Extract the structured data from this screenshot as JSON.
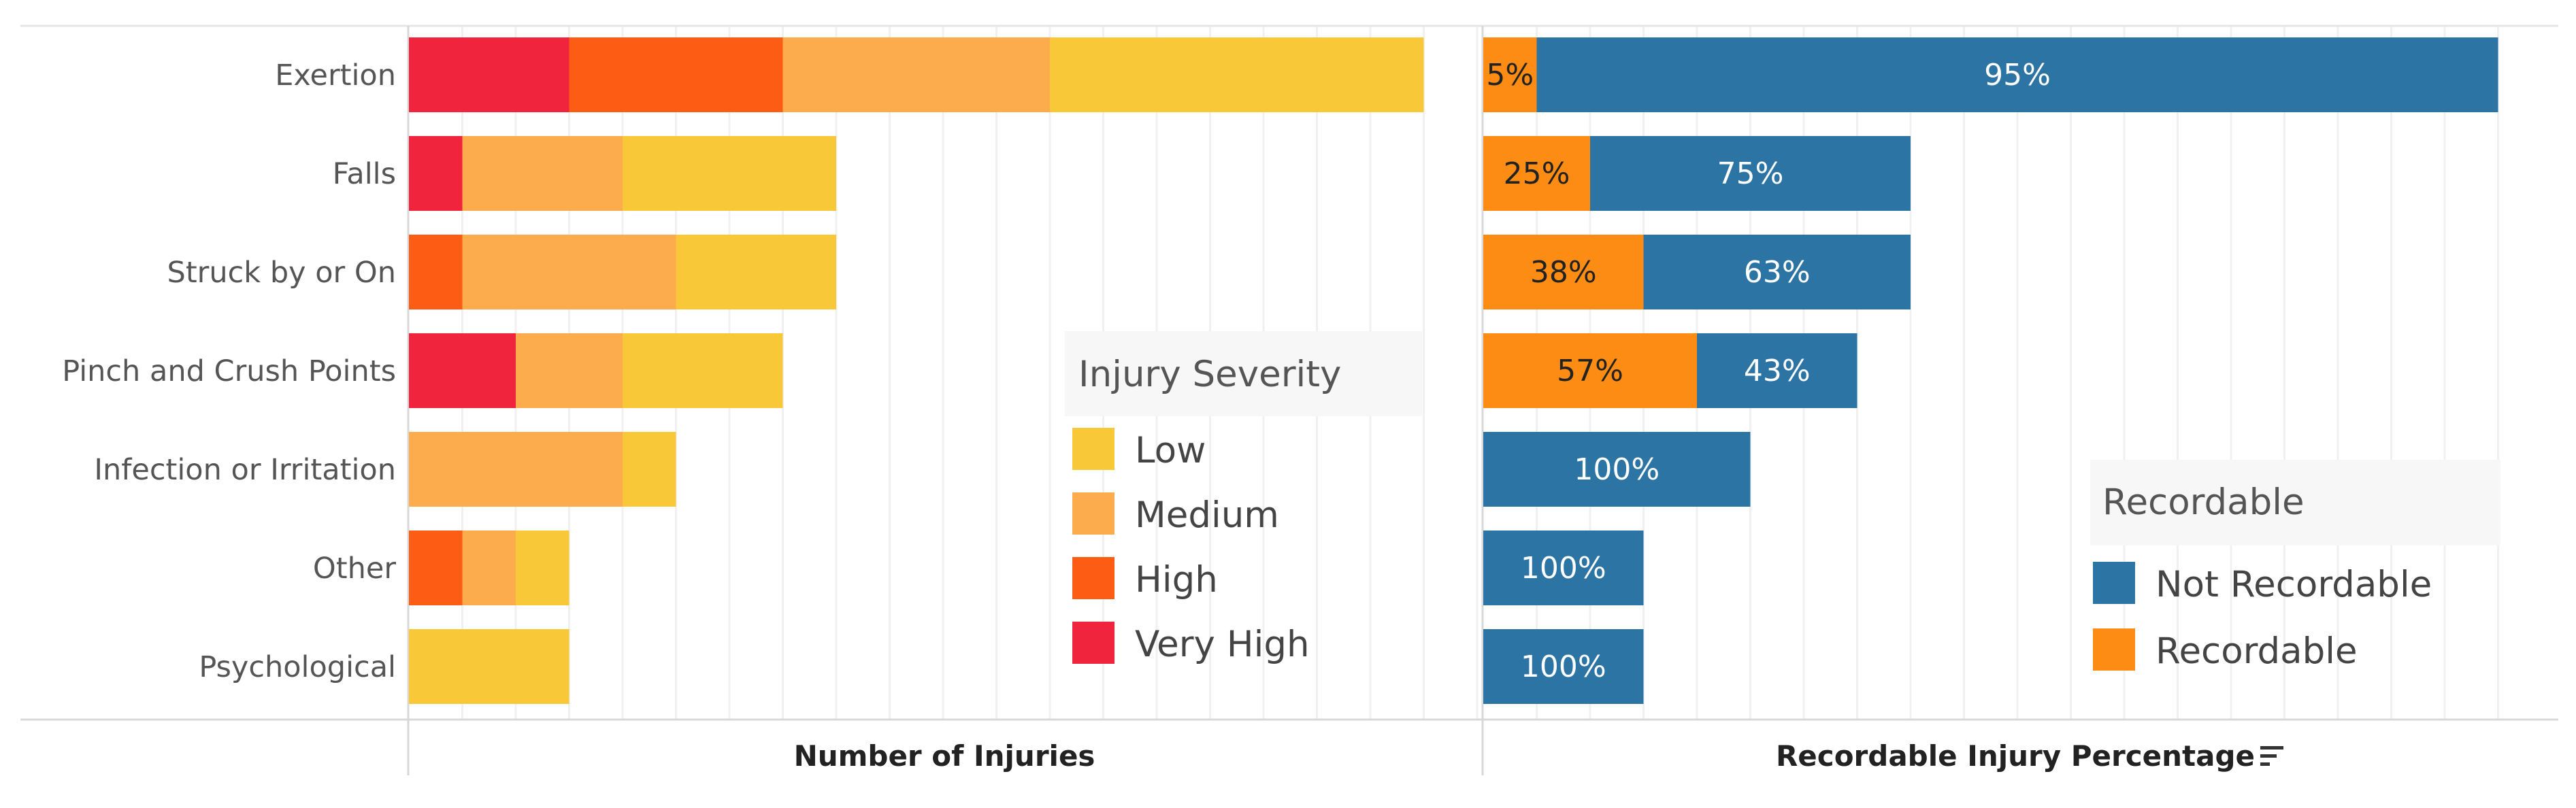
{
  "chart_data": [
    {
      "type": "bar",
      "orientation": "horizontal",
      "stacked": true,
      "title": "",
      "xlabel": "Number of Injuries",
      "ylabel": "",
      "xlim": [
        0,
        20
      ],
      "grid": true,
      "categories": [
        "Exertion",
        "Falls",
        "Struck by or On",
        "Pinch and Crush Points",
        "Infection or Irritation",
        "Other",
        "Psychological"
      ],
      "legend_title": "Injury Severity",
      "legend_position": "right",
      "series": [
        {
          "name": "Very High",
          "color": "#f0243c",
          "values": [
            3,
            1,
            0,
            2,
            0,
            0,
            0
          ]
        },
        {
          "name": "High",
          "color": "#fc5c14",
          "values": [
            4,
            0,
            1,
            0,
            0,
            1,
            0
          ]
        },
        {
          "name": "Medium",
          "color": "#fcac4c",
          "values": [
            5,
            3,
            4,
            2,
            4,
            1,
            0
          ]
        },
        {
          "name": "Low",
          "color": "#f8c838",
          "values": [
            7,
            4,
            3,
            3,
            1,
            1,
            3
          ]
        }
      ],
      "legend_order": [
        "Low",
        "Medium",
        "High",
        "Very High"
      ]
    },
    {
      "type": "bar",
      "orientation": "horizontal",
      "stacked": true,
      "title": "",
      "xlabel": "Recordable Injury Percentage",
      "ylabel": "",
      "xlim": [
        0,
        19
      ],
      "grid": true,
      "categories": [
        "Exertion",
        "Falls",
        "Struck by or On",
        "Pinch and Crush Points",
        "Infection or Irritation",
        "Other",
        "Psychological"
      ],
      "legend_title": "Recordable",
      "legend_position": "bottom-right",
      "series": [
        {
          "name": "Recordable",
          "color": "#fc8c14",
          "values": [
            1,
            2,
            3,
            4,
            0,
            0,
            0
          ],
          "labels": [
            "5%",
            "25%",
            "38%",
            "57%",
            "",
            "",
            ""
          ],
          "label_color": "#222222"
        },
        {
          "name": "Not Recordable",
          "color": "#2c74a4",
          "values": [
            18,
            6,
            5,
            3,
            5,
            3,
            3
          ],
          "labels": [
            "95%",
            "75%",
            "63%",
            "43%",
            "100%",
            "100%",
            "100%"
          ],
          "label_color": "#ffffff"
        }
      ],
      "legend_order": [
        "Not Recordable",
        "Recordable"
      ]
    }
  ]
}
